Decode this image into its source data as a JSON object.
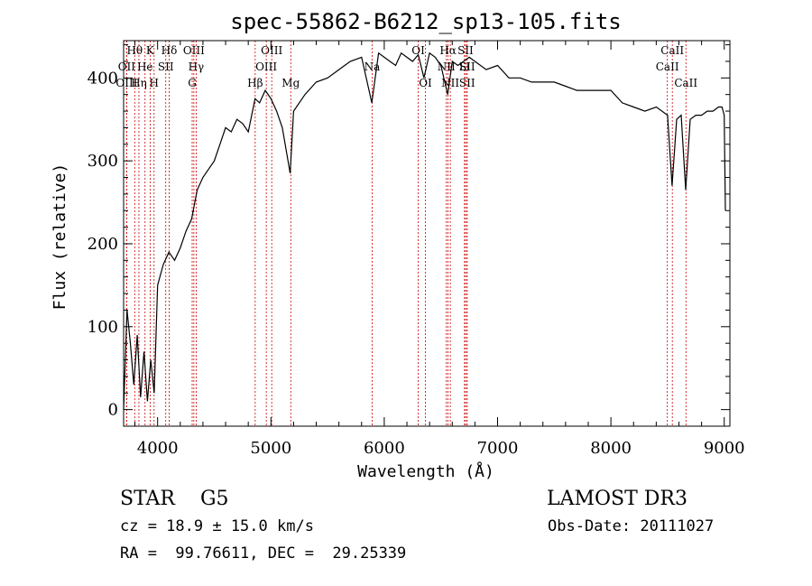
{
  "chart_data": {
    "type": "line",
    "title": "spec-55862-B6212_sp13-105.fits",
    "xlabel": "Wavelength (Å)",
    "ylabel": "Flux (relative)",
    "xlim": [
      3700,
      9050
    ],
    "ylim": [
      -20,
      445
    ],
    "xticks": [
      4000,
      5000,
      6000,
      7000,
      8000,
      9000
    ],
    "yticks": [
      0,
      100,
      200,
      300,
      400
    ],
    "grid": false,
    "series": [
      {
        "x": [
          3700,
          3730,
          3760,
          3790,
          3820,
          3850,
          3880,
          3910,
          3940,
          3970,
          4000,
          4050,
          4100,
          4150,
          4200,
          4250,
          4300,
          4350,
          4400,
          4450,
          4500,
          4550,
          4600,
          4650,
          4700,
          4750,
          4800,
          4860,
          4900,
          4950,
          5000,
          5050,
          5100,
          5170,
          5200,
          5300,
          5400,
          5500,
          5600,
          5700,
          5800,
          5890,
          5950,
          6000,
          6050,
          6100,
          6150,
          6200,
          6250,
          6300,
          6350,
          6400,
          6450,
          6500,
          6560,
          6600,
          6650,
          6700,
          6750,
          6800,
          6900,
          7000,
          7100,
          7200,
          7300,
          7400,
          7500,
          7600,
          7700,
          7800,
          7900,
          8000,
          8100,
          8200,
          8300,
          8400,
          8500,
          8540,
          8580,
          8620,
          8660,
          8700,
          8750,
          8800,
          8850,
          8900,
          8950,
          8980,
          9000,
          9010
        ],
        "y": [
          0,
          120,
          80,
          30,
          90,
          15,
          70,
          10,
          60,
          20,
          150,
          175,
          190,
          180,
          195,
          215,
          230,
          265,
          280,
          290,
          300,
          320,
          340,
          335,
          350,
          345,
          335,
          375,
          370,
          385,
          375,
          360,
          340,
          285,
          360,
          380,
          395,
          400,
          410,
          420,
          425,
          370,
          430,
          425,
          420,
          415,
          430,
          425,
          420,
          428,
          400,
          430,
          425,
          415,
          380,
          420,
          415,
          420,
          425,
          420,
          410,
          415,
          400,
          400,
          395,
          395,
          395,
          390,
          385,
          385,
          385,
          385,
          370,
          365,
          360,
          365,
          355,
          270,
          350,
          355,
          265,
          350,
          355,
          355,
          360,
          360,
          365,
          365,
          355,
          240
        ]
      }
    ],
    "lines": [
      {
        "label": "Hθ",
        "x": 3798,
        "row": 0
      },
      {
        "label": "OII",
        "x": 3727,
        "row": 1
      },
      {
        "label": "OIII",
        "x": 3727,
        "row": 2
      },
      {
        "label": "Hη",
        "x": 3835,
        "row": 2
      },
      {
        "label": "He",
        "x": 3889,
        "row": 1
      },
      {
        "label": "K",
        "x": 3934,
        "row": 0
      },
      {
        "label": "H",
        "x": 3969,
        "row": 2
      },
      {
        "label": "SII",
        "x": 4072,
        "row": 1
      },
      {
        "label": "Hδ",
        "x": 4102,
        "row": 0
      },
      {
        "label": "OIII",
        "x": 4320,
        "row": 0
      },
      {
        "label": "Hγ",
        "x": 4340,
        "row": 1
      },
      {
        "label": "G",
        "x": 4305,
        "row": 2
      },
      {
        "label": "Hβ",
        "x": 4861,
        "row": 2
      },
      {
        "label": "OIII",
        "x": 5007,
        "row": 0
      },
      {
        "label": "OIII",
        "x": 4959,
        "row": 1
      },
      {
        "label": "Mg",
        "x": 5175,
        "row": 2
      },
      {
        "label": "Na",
        "x": 5893,
        "row": 1
      },
      {
        "label": "OI",
        "x": 6300,
        "row": 0
      },
      {
        "label": "OI",
        "x": 6363,
        "row": 2
      },
      {
        "label": "Hα",
        "x": 6563,
        "row": 0
      },
      {
        "label": "NII",
        "x": 6548,
        "row": 1
      },
      {
        "label": "NII",
        "x": 6583,
        "row": 2
      },
      {
        "label": "SII",
        "x": 6717,
        "row": 0
      },
      {
        "label": "SII",
        "x": 6731,
        "row": 1
      },
      {
        "label": "Li",
        "x": 6708,
        "row": 1
      },
      {
        "label": "SII",
        "x": 6731,
        "row": 2
      },
      {
        "label": "CaII",
        "x": 8542,
        "row": 0
      },
      {
        "label": "CaII",
        "x": 8498,
        "row": 1
      },
      {
        "label": "CaII",
        "x": 8662,
        "row": 2
      }
    ],
    "marker_line_color": "#cc0000",
    "series_color": "#000000"
  },
  "info": {
    "obj_class": "STAR    G5",
    "survey": "LAMOST DR3",
    "cz": "cz = 18.9 ± 15.0 km/s",
    "obs_date": "Obs-Date: 20111027",
    "radec": "RA =  99.76611, DEC =  29.25339"
  }
}
